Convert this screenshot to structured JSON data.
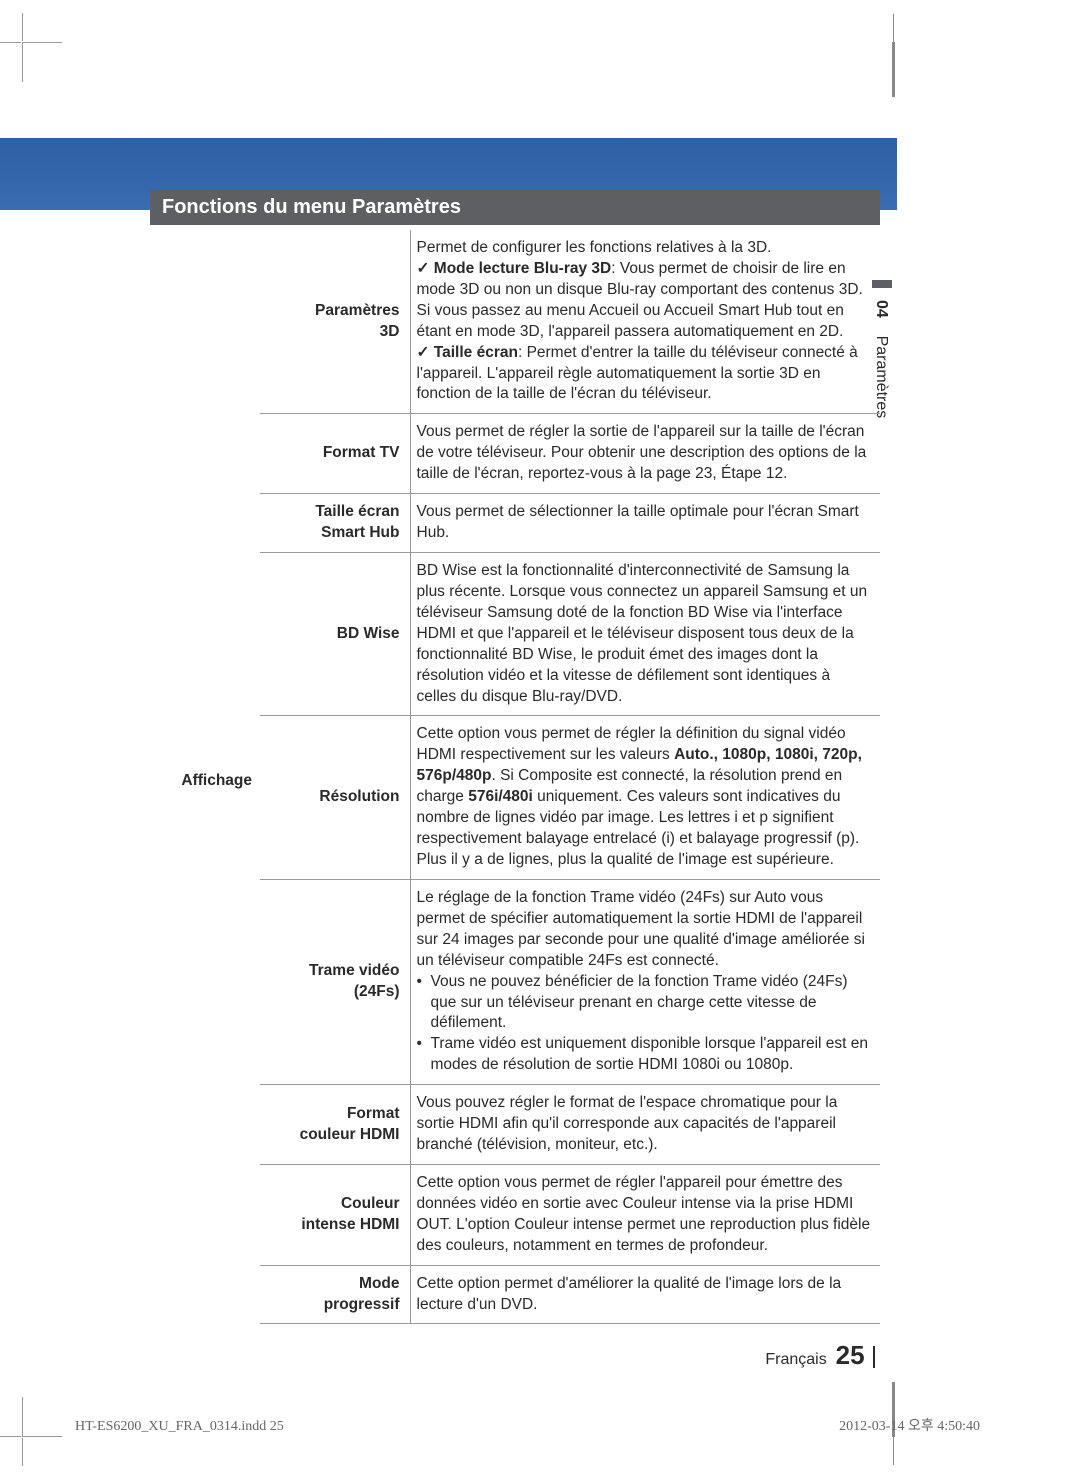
{
  "section_title": "Fonctions du menu Paramètres",
  "side_tab": {
    "num": "04",
    "label": "Paramètres"
  },
  "category": "Affichage",
  "rows": [
    {
      "label": "Paramètres\n3D",
      "desc_html": "Permet de configurer les fonctions relatives à la 3D.<br><span class=\"check\"><b>Mode lecture Blu-ray 3D</b>: Vous permet de choisir de lire en mode 3D ou non un disque Blu-ray comportant des contenus 3D. Si vous passez au menu Accueil ou Accueil Smart Hub tout en étant en mode 3D, l'appareil passera automatiquement en 2D.</span><br><span class=\"check\"><b>Taille écran</b>: Permet d'entrer la taille du téléviseur connecté à l'appareil. L'appareil règle automatiquement la sortie 3D en fonction de la taille de l'écran du téléviseur.</span>"
    },
    {
      "label": "Format TV",
      "desc_html": "Vous permet de régler la sortie de l'appareil sur la taille de l'écran de votre téléviseur. Pour obtenir une description des options de la taille de l'écran, reportez-vous à la page 23, Étape 12."
    },
    {
      "label": "Taille écran\nSmart Hub",
      "desc_html": "Vous permet de sélectionner la taille optimale pour l'écran Smart Hub."
    },
    {
      "label": "BD Wise",
      "desc_html": "BD Wise est la fonctionnalité d'interconnectivité de Samsung la plus récente. Lorsque vous connectez un appareil Samsung et un téléviseur Samsung doté de la fonction BD Wise via l'interface HDMI et que l'appareil et le téléviseur disposent tous deux de la fonctionnalité BD Wise, le produit émet des images dont la résolution vidéo et la vitesse de défilement sont identiques à celles du disque Blu-ray/DVD."
    },
    {
      "label": "Résolution",
      "desc_html": "Cette option vous permet de régler la définition du signal vidéo HDMI respectivement sur les valeurs <b>Auto., 1080p, 1080i, 720p, 576p/480p</b>. Si Composite est connecté, la résolution prend en charge <b>576i/480i</b> uniquement. Ces valeurs sont indicatives du nombre de lignes vidéo par image. Les lettres i et p signifient respectivement balayage entrelacé (i) et balayage progressif (p). Plus il y a de lignes, plus la qualité de l'image est supérieure."
    },
    {
      "label": "Trame vidéo\n(24Fs)",
      "desc_html": "Le réglage de la fonction Trame vidéo (24Fs) sur Auto vous permet de spécifier automatiquement la sortie HDMI de l'appareil sur 24 images par seconde pour une qualité d'image améliorée si un téléviseur compatible 24Fs est connecté.<br><span class=\"bullet\">Vous ne pouvez bénéficier de la fonction Trame vidéo (24Fs) que sur un téléviseur prenant en charge cette vitesse de défilement.</span><span class=\"bullet\">Trame vidéo est uniquement disponible lorsque l'appareil est en modes de résolution de sortie HDMI 1080i ou 1080p.</span>"
    },
    {
      "label": "Format\ncouleur HDMI",
      "desc_html": "Vous pouvez régler le format de l'espace chromatique pour la sortie HDMI afin qu'il corresponde aux capacités de l'appareil branché (télévision, moniteur, etc.)."
    },
    {
      "label": "Couleur\nintense HDMI",
      "desc_html": "Cette option vous permet de régler l'appareil pour émettre des données vidéo en sortie avec Couleur intense via la prise HDMI OUT. L'option Couleur intense permet une reproduction plus fidèle des couleurs, notamment en termes de profondeur."
    },
    {
      "label": "Mode\nprogressif",
      "desc_html": "Cette option permet d'améliorer la qualité de l'image lors de la lecture d'un DVD."
    }
  ],
  "footer": {
    "lang": "Français",
    "page": "25",
    "file": "HT-ES6200_XU_FRA_0314.indd   25",
    "stamp": "2012-03-14   오후 4:50:40"
  }
}
